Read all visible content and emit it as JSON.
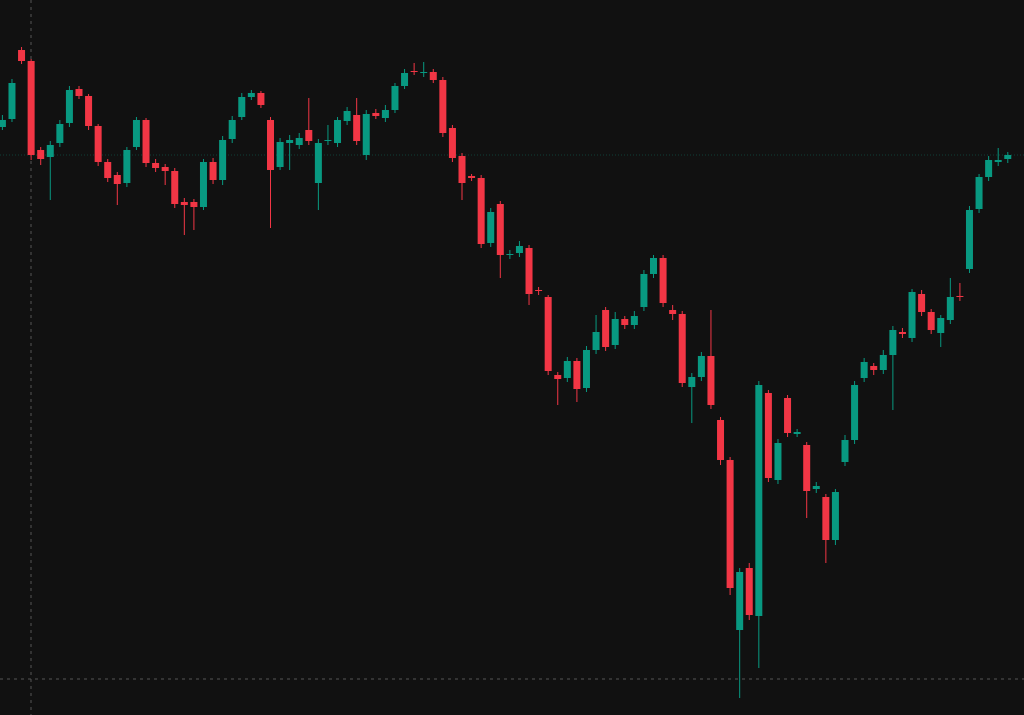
{
  "chart_data": {
    "type": "candlestick",
    "up_color": "#089981",
    "down_color": "#f23645",
    "ylim": [
      0,
      715
    ],
    "open": [
      588,
      596,
      665,
      654,
      565,
      558,
      572,
      592,
      626,
      619,
      589,
      553,
      540,
      532,
      568,
      595,
      552,
      548,
      544,
      513,
      513,
      508,
      553,
      535,
      576,
      598,
      618,
      622,
      595,
      548,
      572,
      570,
      585,
      532,
      575,
      572,
      594,
      600,
      560,
      602,
      597,
      605,
      629,
      644,
      643,
      643,
      635,
      587,
      559,
      539,
      537,
      472,
      511,
      460,
      462,
      467,
      425,
      418,
      340,
      337,
      354,
      327,
      365,
      405,
      370,
      396,
      390,
      408,
      441,
      457,
      405,
      401,
      328,
      338,
      359,
      295,
      255,
      85,
      147,
      99,
      322,
      235,
      317,
      281,
      270,
      226,
      218,
      175,
      253,
      275,
      337,
      349,
      345,
      360,
      383,
      377,
      421,
      403,
      382,
      395,
      419,
      446,
      506,
      538,
      553,
      556
    ],
    "high": [
      600,
      636,
      668,
      656,
      568,
      574,
      595,
      629,
      629,
      621,
      591,
      556,
      543,
      568,
      598,
      597,
      556,
      551,
      547,
      517,
      516,
      556,
      557,
      579,
      599,
      622,
      625,
      624,
      598,
      577,
      580,
      582,
      617,
      576,
      590,
      598,
      608,
      617,
      605,
      606,
      610,
      632,
      646,
      652,
      653,
      646,
      638,
      590,
      562,
      541,
      540,
      507,
      514,
      465,
      474,
      470,
      428,
      420,
      343,
      358,
      357,
      369,
      400,
      408,
      403,
      399,
      404,
      445,
      460,
      460,
      410,
      404,
      342,
      363,
      405,
      298,
      258,
      147,
      152,
      334,
      325,
      276,
      320,
      286,
      273,
      233,
      221,
      226,
      280,
      334,
      357,
      352,
      365,
      389,
      387,
      426,
      425,
      406,
      400,
      437,
      432,
      509,
      541,
      559,
      567,
      563
    ],
    "low": [
      585,
      593,
      651,
      555,
      550,
      515,
      568,
      588,
      616,
      585,
      549,
      533,
      510,
      528,
      565,
      548,
      543,
      530,
      507,
      480,
      485,
      505,
      531,
      530,
      572,
      595,
      615,
      607,
      487,
      545,
      545,
      566,
      570,
      505,
      570,
      568,
      590,
      570,
      555,
      596,
      593,
      602,
      626,
      640,
      638,
      632,
      578,
      553,
      515,
      534,
      467,
      468,
      437,
      456,
      458,
      410,
      420,
      340,
      310,
      333,
      313,
      323,
      361,
      364,
      366,
      386,
      386,
      404,
      437,
      408,
      395,
      328,
      292,
      334,
      306,
      250,
      120,
      17,
      95,
      47,
      233,
      231,
      278,
      278,
      197,
      222,
      152,
      170,
      249,
      271,
      333,
      340,
      341,
      305,
      377,
      373,
      399,
      381,
      368,
      391,
      414,
      442,
      502,
      534,
      549,
      552
    ],
    "close": [
      595,
      632,
      654,
      560,
      556,
      570,
      591,
      625,
      619,
      589,
      553,
      537,
      531,
      565,
      595,
      552,
      547,
      544,
      511,
      510,
      508,
      553,
      535,
      575,
      595,
      618,
      622,
      610,
      545,
      573,
      575,
      577,
      574,
      572,
      575,
      595,
      604,
      574,
      601,
      599,
      605,
      629,
      642,
      643,
      643,
      635,
      582,
      557,
      532,
      537,
      471,
      503,
      460,
      461,
      469,
      421,
      424,
      344,
      336,
      354,
      326,
      365,
      383,
      368,
      396,
      390,
      399,
      441,
      457,
      412,
      401,
      332,
      338,
      359,
      310,
      255,
      127,
      143,
      100,
      330,
      237,
      272,
      282,
      283,
      224,
      229,
      175,
      223,
      275,
      330,
      353,
      345,
      360,
      385,
      381,
      423,
      403,
      385,
      397,
      418,
      418,
      505,
      538,
      555,
      555,
      560
    ]
  }
}
